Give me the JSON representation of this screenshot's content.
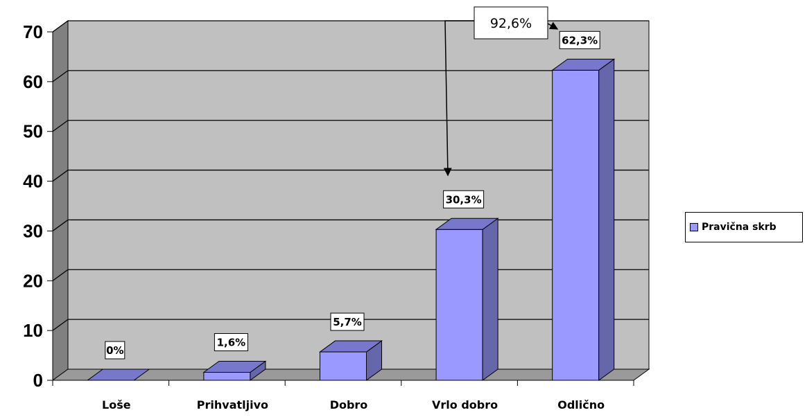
{
  "chart_data": {
    "type": "bar",
    "categories": [
      "Loše",
      "Prihvatljivo",
      "Dobro",
      "Vrlo dobro",
      "Odlično"
    ],
    "series": [
      {
        "name": "Pravična skrb",
        "values": [
          0,
          1.6,
          5.7,
          30.3,
          62.3
        ]
      }
    ],
    "data_labels": [
      "0%",
      "1,6%",
      "5,7%",
      "30,3%",
      "62,3%"
    ],
    "ylim": [
      0,
      70
    ],
    "yticks": [
      0,
      10,
      20,
      30,
      40,
      50,
      60,
      70
    ],
    "grid": true,
    "legend_position": "right",
    "annotation": {
      "text": "92,6%",
      "targets": [
        "Vrlo dobro",
        "Odlično"
      ]
    },
    "colors": {
      "bar_front": "#9999ff",
      "bar_side": "#6666aa",
      "bar_top": "#7777cc",
      "plot_back": "#c0c0c0",
      "wall_left": "#808080",
      "floor": "#9a9a9a"
    }
  },
  "legend": {
    "label": "Pravična skrb"
  }
}
